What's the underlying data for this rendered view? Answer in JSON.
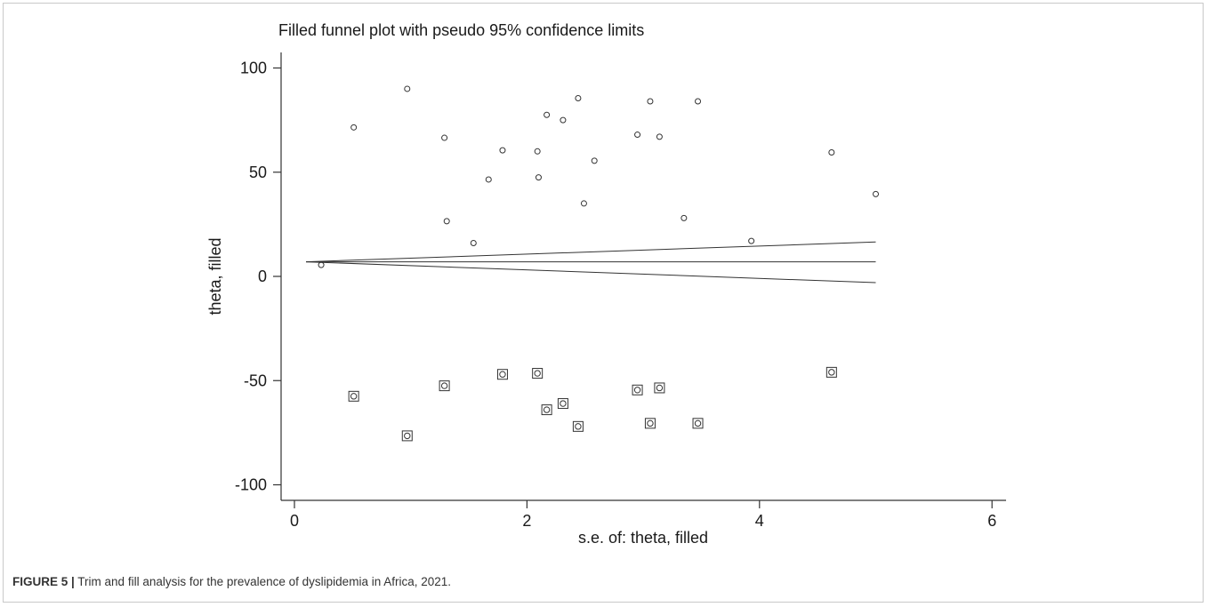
{
  "chart_data": {
    "type": "scatter",
    "title": "Filled funnel plot with pseudo 95% confidence limits",
    "xlabel": "s.e. of: theta, filled",
    "ylabel": "theta, filled",
    "xlim": [
      0,
      6
    ],
    "ylim": [
      -100,
      100
    ],
    "xticks": [
      "0",
      "2",
      "4",
      "6"
    ],
    "yticks": [
      "-100",
      "-50",
      "0",
      "50",
      "100"
    ],
    "xtick_values": [
      0,
      2,
      4,
      6
    ],
    "ytick_values": [
      -100,
      -50,
      0,
      50,
      100
    ],
    "pooled_estimate": 7,
    "funnel": {
      "apex": [
        0.1,
        7
      ],
      "end_x": 5,
      "upper_end": 16.5,
      "lower_end": -3
    },
    "series": [
      {
        "marker": "circle",
        "points": [
          [
            0.23,
            5.5
          ],
          [
            0.51,
            71.5
          ],
          [
            0.97,
            90
          ],
          [
            1.29,
            66.5
          ],
          [
            1.31,
            26.5
          ],
          [
            1.54,
            16
          ],
          [
            1.67,
            46.5
          ],
          [
            1.79,
            60.5
          ],
          [
            2.09,
            60
          ],
          [
            2.1,
            47.5
          ],
          [
            2.17,
            77.5
          ],
          [
            2.31,
            75
          ],
          [
            2.44,
            85.5
          ],
          [
            2.49,
            35
          ],
          [
            2.58,
            55.5
          ],
          [
            2.95,
            68
          ],
          [
            3.06,
            84
          ],
          [
            3.14,
            67
          ],
          [
            3.35,
            28
          ],
          [
            3.47,
            84
          ],
          [
            3.93,
            17
          ],
          [
            4.62,
            59.5
          ],
          [
            5.0,
            39.5
          ]
        ]
      },
      {
        "marker": "circle-in-square",
        "points": [
          [
            0.51,
            -57.5
          ],
          [
            0.97,
            -76.5
          ],
          [
            1.29,
            -52.5
          ],
          [
            1.79,
            -47
          ],
          [
            2.09,
            -46.5
          ],
          [
            2.17,
            -64
          ],
          [
            2.31,
            -61
          ],
          [
            2.44,
            -72
          ],
          [
            2.95,
            -54.5
          ],
          [
            3.06,
            -70.5
          ],
          [
            3.14,
            -53.5
          ],
          [
            3.47,
            -70.5
          ],
          [
            4.62,
            -46
          ]
        ]
      }
    ]
  },
  "caption": {
    "label": "FIGURE 5 |",
    "text": " Trim and fill analysis for the prevalence of dyslipidemia in Africa, 2021."
  }
}
